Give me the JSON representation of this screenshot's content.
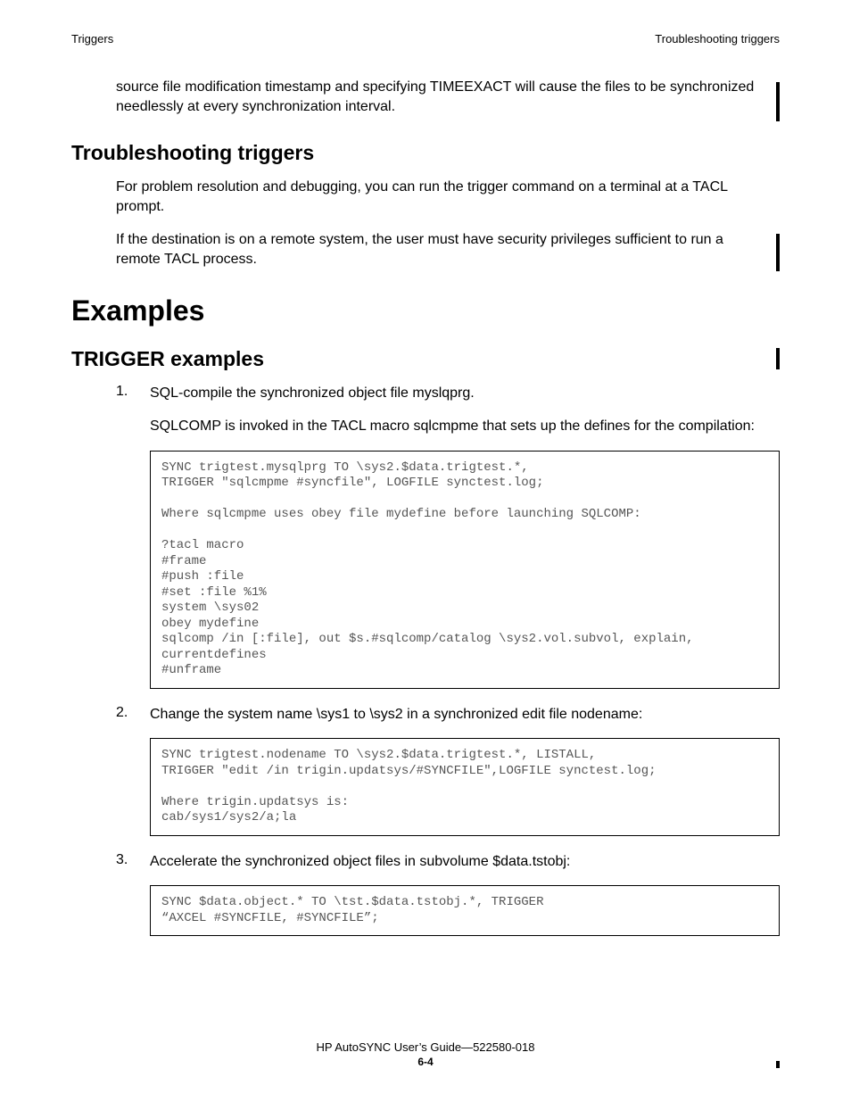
{
  "header": {
    "left": "Triggers",
    "right": "Troubleshooting triggers"
  },
  "intro_para": "source file modification timestamp and specifying TIMEEXACT will cause the files to be synchronized needlessly at every synchronization interval.",
  "troubleshoot": {
    "heading": "Troubleshooting triggers",
    "p1": "For problem resolution and debugging, you can run the trigger command on a terminal at a TACL prompt.",
    "p2": "If the destination is on a remote system, the user must have security privileges sufficient to run a remote TACL process."
  },
  "examples_heading": "Examples",
  "trigger_examples_heading": "TRIGGER examples",
  "items": [
    {
      "num": "1.",
      "p1": "SQL-compile the synchronized object file myslqprg.",
      "p2": "SQLCOMP is invoked in the TACL macro sqlcmpme that sets up the defines for the compilation:",
      "code": "SYNC trigtest.mysqlprg TO \\sys2.$data.trigtest.*,\nTRIGGER \"sqlcmpme #syncfile\", LOGFILE synctest.log;\n\nWhere sqlcmpme uses obey file mydefine before launching SQLCOMP:\n\n?tacl macro\n#frame\n#push :file\n#set :file %1%\nsystem \\sys02\nobey mydefine\nsqlcomp /in [:file], out $s.#sqlcomp/catalog \\sys2.vol.subvol, explain, currentdefines\n#unframe"
    },
    {
      "num": "2.",
      "p1": "Change the system name \\sys1 to \\sys2 in a synchronized edit file nodename:",
      "code": "SYNC trigtest.nodename TO \\sys2.$data.trigtest.*, LISTALL,\nTRIGGER \"edit /in trigin.updatsys/#SYNCFILE\",LOGFILE synctest.log;\n\nWhere trigin.updatsys is:\ncab/sys1/sys2/a;la"
    },
    {
      "num": "3.",
      "p1": "Accelerate the synchronized object files in subvolume $data.tstobj:",
      "code": "SYNC $data.object.* TO \\tst.$data.tstobj.*, TRIGGER\n“AXCEL #SYNCFILE, #SYNCFILE”;"
    }
  ],
  "footer": {
    "line1": "HP AutoSYNC User’s Guide—522580-018",
    "page": "6-4"
  }
}
